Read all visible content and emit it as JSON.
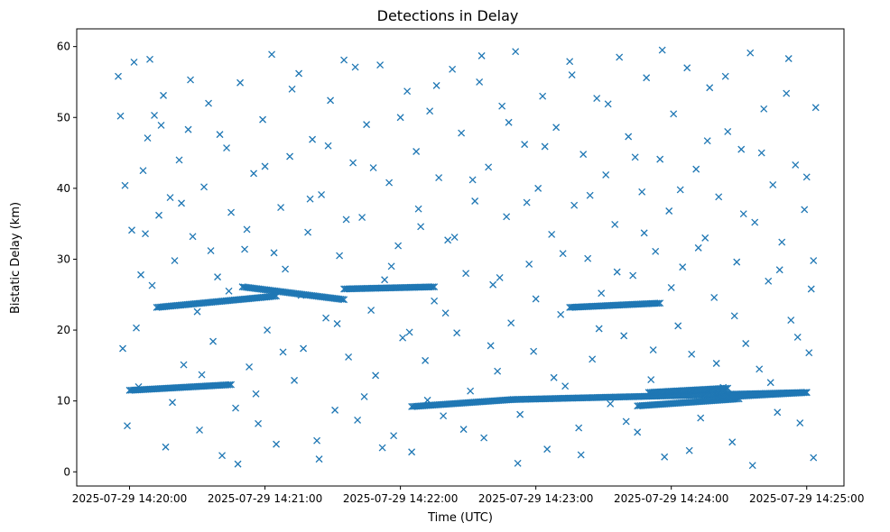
{
  "chart_data": {
    "type": "scatter",
    "title": "Detections in Delay",
    "xlabel": "Time (UTC)",
    "ylabel": "Bistatic Delay (km)",
    "marker": "x",
    "color": "#1f77b4",
    "x_unit": "seconds after 2025-07-29 14:20:00 UTC",
    "xlim": [
      -23.4,
      316.5
    ],
    "ylim": [
      -2.0,
      62.5
    ],
    "x_ticks": [
      {
        "value": 0,
        "label": "2025-07-29 14:20:00"
      },
      {
        "value": 60,
        "label": "2025-07-29 14:21:00"
      },
      {
        "value": 120,
        "label": "2025-07-29 14:22:00"
      },
      {
        "value": 180,
        "label": "2025-07-29 14:23:00"
      },
      {
        "value": 240,
        "label": "2025-07-29 14:24:00"
      },
      {
        "value": 300,
        "label": "2025-07-29 14:25:00"
      }
    ],
    "y_ticks": [
      0,
      10,
      20,
      30,
      40,
      50,
      60
    ],
    "grid": false,
    "tracks": [
      {
        "x": [
          0,
          45
        ],
        "y": [
          11.5,
          12.3
        ]
      },
      {
        "x": [
          12,
          65
        ],
        "y": [
          23.2,
          24.8
        ]
      },
      {
        "x": [
          50,
          95
        ],
        "y": [
          26.1,
          24.3
        ]
      },
      {
        "x": [
          95,
          135
        ],
        "y": [
          25.8,
          26.1
        ]
      },
      {
        "x": [
          125,
          170
        ],
        "y": [
          9.2,
          10.2
        ]
      },
      {
        "x": [
          170,
          300
        ],
        "y": [
          10.2,
          11.2
        ]
      },
      {
        "x": [
          195,
          235
        ],
        "y": [
          23.2,
          23.8
        ]
      },
      {
        "x": [
          225,
          270
        ],
        "y": [
          9.3,
          10.3
        ]
      },
      {
        "x": [
          230,
          265
        ],
        "y": [
          11.2,
          11.8
        ]
      },
      {
        "x": [
          260,
          300
        ],
        "y": [
          10.5,
          11.2
        ]
      }
    ],
    "random_points": [
      [
        -5,
        55.8
      ],
      [
        -4,
        50.2
      ],
      [
        -2,
        40.4
      ],
      [
        -1,
        6.5
      ],
      [
        1,
        34.1
      ],
      [
        2,
        57.8
      ],
      [
        3,
        20.3
      ],
      [
        5,
        27.8
      ],
      [
        6,
        42.5
      ],
      [
        8,
        47.1
      ],
      [
        9,
        58.2
      ],
      [
        11,
        50.3
      ],
      [
        13,
        36.2
      ],
      [
        15,
        53.1
      ],
      [
        16,
        3.5
      ],
      [
        18,
        38.7
      ],
      [
        20,
        29.8
      ],
      [
        22,
        44.0
      ],
      [
        24,
        15.1
      ],
      [
        26,
        48.3
      ],
      [
        28,
        33.2
      ],
      [
        30,
        22.6
      ],
      [
        31,
        5.9
      ],
      [
        33,
        40.2
      ],
      [
        35,
        52.0
      ],
      [
        37,
        18.4
      ],
      [
        39,
        27.5
      ],
      [
        41,
        2.3
      ],
      [
        43,
        45.7
      ],
      [
        45,
        36.6
      ],
      [
        47,
        9.0
      ],
      [
        49,
        54.9
      ],
      [
        51,
        31.4
      ],
      [
        53,
        14.8
      ],
      [
        55,
        42.1
      ],
      [
        57,
        6.8
      ],
      [
        59,
        49.7
      ],
      [
        61,
        20.0
      ],
      [
        63,
        58.9
      ],
      [
        65,
        3.9
      ],
      [
        67,
        37.3
      ],
      [
        69,
        28.6
      ],
      [
        71,
        44.5
      ],
      [
        73,
        12.9
      ],
      [
        75,
        56.2
      ],
      [
        77,
        17.4
      ],
      [
        79,
        33.8
      ],
      [
        81,
        46.9
      ],
      [
        83,
        4.4
      ],
      [
        85,
        39.1
      ],
      [
        87,
        21.7
      ],
      [
        89,
        52.4
      ],
      [
        91,
        8.7
      ],
      [
        93,
        30.5
      ],
      [
        95,
        58.1
      ],
      [
        97,
        16.2
      ],
      [
        99,
        43.6
      ],
      [
        101,
        7.3
      ],
      [
        103,
        35.9
      ],
      [
        105,
        49.0
      ],
      [
        107,
        22.8
      ],
      [
        109,
        13.6
      ],
      [
        111,
        57.4
      ],
      [
        113,
        27.1
      ],
      [
        115,
        40.8
      ],
      [
        117,
        5.1
      ],
      [
        119,
        31.9
      ],
      [
        121,
        18.9
      ],
      [
        123,
        53.7
      ],
      [
        125,
        2.8
      ],
      [
        127,
        45.2
      ],
      [
        129,
        34.6
      ],
      [
        131,
        15.7
      ],
      [
        133,
        50.9
      ],
      [
        135,
        24.1
      ],
      [
        137,
        41.5
      ],
      [
        139,
        7.9
      ],
      [
        141,
        32.7
      ],
      [
        143,
        56.8
      ],
      [
        145,
        19.6
      ],
      [
        147,
        47.8
      ],
      [
        149,
        28.0
      ],
      [
        151,
        11.4
      ],
      [
        153,
        38.2
      ],
      [
        155,
        55.0
      ],
      [
        157,
        4.8
      ],
      [
        159,
        43.0
      ],
      [
        161,
        26.4
      ],
      [
        163,
        14.2
      ],
      [
        165,
        51.6
      ],
      [
        167,
        36.0
      ],
      [
        169,
        21.0
      ],
      [
        171,
        59.3
      ],
      [
        173,
        8.1
      ],
      [
        175,
        46.2
      ],
      [
        177,
        29.3
      ],
      [
        179,
        17.0
      ],
      [
        181,
        40.0
      ],
      [
        183,
        53.0
      ],
      [
        185,
        3.2
      ],
      [
        187,
        33.5
      ],
      [
        189,
        48.6
      ],
      [
        191,
        22.2
      ],
      [
        193,
        12.1
      ],
      [
        195,
        57.9
      ],
      [
        197,
        37.6
      ],
      [
        199,
        6.2
      ],
      [
        201,
        44.8
      ],
      [
        203,
        30.1
      ],
      [
        205,
        15.9
      ],
      [
        207,
        52.7
      ],
      [
        209,
        25.2
      ],
      [
        211,
        41.9
      ],
      [
        213,
        9.6
      ],
      [
        215,
        34.9
      ],
      [
        217,
        58.5
      ],
      [
        219,
        19.2
      ],
      [
        221,
        47.3
      ],
      [
        223,
        27.7
      ],
      [
        225,
        5.6
      ],
      [
        227,
        39.5
      ],
      [
        229,
        55.6
      ],
      [
        231,
        13.0
      ],
      [
        233,
        31.1
      ],
      [
        235,
        44.1
      ],
      [
        237,
        2.1
      ],
      [
        239,
        36.8
      ],
      [
        241,
        50.5
      ],
      [
        243,
        20.6
      ],
      [
        245,
        28.9
      ],
      [
        247,
        57.0
      ],
      [
        249,
        16.6
      ],
      [
        251,
        42.7
      ],
      [
        253,
        7.6
      ],
      [
        255,
        33.0
      ],
      [
        257,
        54.2
      ],
      [
        259,
        24.6
      ],
      [
        261,
        38.8
      ],
      [
        263,
        11.9
      ],
      [
        265,
        48.0
      ],
      [
        267,
        4.2
      ],
      [
        269,
        29.6
      ],
      [
        271,
        45.5
      ],
      [
        273,
        18.1
      ],
      [
        275,
        59.1
      ],
      [
        277,
        35.2
      ],
      [
        279,
        14.5
      ],
      [
        281,
        51.2
      ],
      [
        283,
        26.9
      ],
      [
        285,
        40.5
      ],
      [
        287,
        8.4
      ],
      [
        289,
        32.4
      ],
      [
        291,
        53.4
      ],
      [
        293,
        21.4
      ],
      [
        295,
        43.3
      ],
      [
        297,
        6.9
      ],
      [
        299,
        37.0
      ],
      [
        301,
        16.8
      ],
      [
        303,
        29.8
      ],
      [
        304,
        51.4
      ],
      [
        -3,
        17.4
      ],
      [
        4,
        12.0
      ],
      [
        7,
        33.6
      ],
      [
        10,
        26.3
      ],
      [
        14,
        48.9
      ],
      [
        19,
        9.8
      ],
      [
        23,
        37.9
      ],
      [
        27,
        55.3
      ],
      [
        32,
        13.7
      ],
      [
        36,
        31.2
      ],
      [
        40,
        47.6
      ],
      [
        44,
        25.5
      ],
      [
        48,
        1.1
      ],
      [
        52,
        34.2
      ],
      [
        56,
        11.0
      ],
      [
        60,
        43.1
      ],
      [
        64,
        30.9
      ],
      [
        68,
        16.9
      ],
      [
        72,
        54.0
      ],
      [
        76,
        24.9
      ],
      [
        80,
        38.5
      ],
      [
        84,
        1.8
      ],
      [
        88,
        46.0
      ],
      [
        92,
        20.9
      ],
      [
        96,
        35.6
      ],
      [
        100,
        57.1
      ],
      [
        104,
        10.6
      ],
      [
        108,
        42.9
      ],
      [
        112,
        3.4
      ],
      [
        116,
        29.0
      ],
      [
        120,
        50.0
      ],
      [
        124,
        19.7
      ],
      [
        128,
        37.1
      ],
      [
        132,
        10.1
      ],
      [
        136,
        54.5
      ],
      [
        140,
        22.4
      ],
      [
        144,
        33.1
      ],
      [
        148,
        6.0
      ],
      [
        152,
        41.2
      ],
      [
        156,
        58.7
      ],
      [
        160,
        17.8
      ],
      [
        164,
        27.4
      ],
      [
        168,
        49.3
      ],
      [
        172,
        1.2
      ],
      [
        176,
        38.0
      ],
      [
        180,
        24.4
      ],
      [
        184,
        45.9
      ],
      [
        188,
        13.3
      ],
      [
        192,
        30.8
      ],
      [
        196,
        56.0
      ],
      [
        200,
        2.4
      ],
      [
        204,
        39.0
      ],
      [
        208,
        20.2
      ],
      [
        212,
        51.9
      ],
      [
        216,
        28.2
      ],
      [
        220,
        7.1
      ],
      [
        224,
        44.4
      ],
      [
        228,
        33.7
      ],
      [
        232,
        17.2
      ],
      [
        236,
        59.5
      ],
      [
        240,
        26.0
      ],
      [
        244,
        39.8
      ],
      [
        248,
        3.0
      ],
      [
        252,
        31.6
      ],
      [
        256,
        46.7
      ],
      [
        260,
        15.3
      ],
      [
        264,
        55.8
      ],
      [
        268,
        22.0
      ],
      [
        272,
        36.4
      ],
      [
        276,
        0.9
      ],
      [
        280,
        45.0
      ],
      [
        284,
        12.6
      ],
      [
        288,
        28.5
      ],
      [
        292,
        58.3
      ],
      [
        296,
        19.0
      ],
      [
        300,
        41.6
      ],
      [
        302,
        25.8
      ],
      [
        303,
        2.0
      ]
    ]
  }
}
